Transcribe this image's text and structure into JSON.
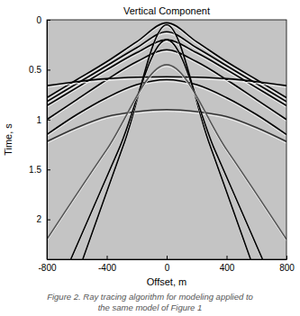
{
  "chart_data": {
    "type": "line",
    "title": "Vertical Component",
    "x_label": "Offset, m",
    "y_label": "Time, s",
    "caption": [
      "Figure 2. Ray tracing algorithm for modeling applied to",
      "the same model of Figure 1"
    ],
    "xlim": [
      -800,
      800
    ],
    "ylim": [
      0,
      2.4
    ],
    "xticks": [
      -800,
      -400,
      0,
      400,
      800
    ],
    "yticks": [
      0,
      0.5,
      1,
      1.5,
      2
    ],
    "grid": false,
    "series": [
      {
        "color": "#000000",
        "x": [
          -800,
          -600,
          -400,
          -200,
          0,
          200,
          400,
          600,
          800
        ],
        "values": [
          0.78,
          0.6,
          0.42,
          0.22,
          0.03,
          0.22,
          0.42,
          0.6,
          0.78
        ]
      },
      {
        "color": "#000000",
        "x": [
          -800,
          -600,
          -400,
          -200,
          0,
          200,
          400,
          600,
          800
        ],
        "values": [
          0.82,
          0.64,
          0.46,
          0.28,
          0.12,
          0.28,
          0.46,
          0.64,
          0.82
        ]
      },
      {
        "color": "#000000",
        "x": [
          -800,
          -600,
          -400,
          -200,
          0,
          200,
          400,
          600,
          800
        ],
        "values": [
          0.86,
          0.68,
          0.5,
          0.33,
          0.2,
          0.33,
          0.5,
          0.68,
          0.86
        ]
      },
      {
        "color": "#000000",
        "x": [
          -800,
          -600,
          -400,
          -200,
          0,
          200,
          400,
          600,
          800
        ],
        "values": [
          1.0,
          0.8,
          0.6,
          0.42,
          0.3,
          0.42,
          0.6,
          0.8,
          1.0
        ]
      },
      {
        "color": "#000000",
        "x": [
          -800,
          -600,
          -400,
          -200,
          0,
          200,
          400,
          600,
          800
        ],
        "values": [
          0.66,
          0.62,
          0.59,
          0.575,
          0.57,
          0.575,
          0.59,
          0.62,
          0.66
        ]
      },
      {
        "color": "#000000",
        "x": [
          -800,
          -600,
          -400,
          -200,
          0,
          200,
          400,
          600,
          800
        ],
        "values": [
          1.15,
          0.95,
          0.78,
          0.65,
          0.6,
          0.65,
          0.78,
          0.95,
          1.15
        ]
      },
      {
        "color": "#333333",
        "x": [
          -800,
          -600,
          -400,
          -200,
          0,
          200,
          400,
          600,
          800
        ],
        "values": [
          1.22,
          1.08,
          0.97,
          0.92,
          0.9,
          0.92,
          0.97,
          1.08,
          1.22
        ]
      },
      {
        "color": "#000000",
        "x": [
          -560,
          -280,
          0,
          280,
          560
        ],
        "values": [
          2.4,
          1.22,
          0.05,
          1.22,
          2.4
        ]
      },
      {
        "color": "#000000",
        "x": [
          -640,
          -320,
          0,
          320,
          640
        ],
        "values": [
          2.4,
          1.3,
          0.2,
          1.3,
          2.4
        ]
      },
      {
        "color": "#555555",
        "x": [
          -800,
          -400,
          0,
          400,
          800
        ],
        "values": [
          2.2,
          1.3,
          0.45,
          1.3,
          2.2
        ]
      }
    ]
  }
}
